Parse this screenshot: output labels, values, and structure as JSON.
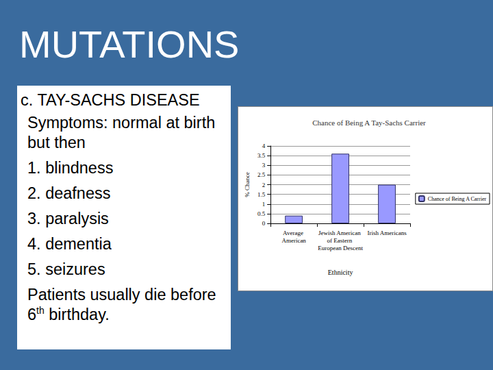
{
  "slide": {
    "title": "MUTATIONS",
    "heading": "c. TAY-SACHS DISEASE",
    "intro": "Symptoms: normal at birth but then",
    "symptoms": [
      "1. blindness",
      "2. deafness",
      "3. paralysis",
      "4. dementia",
      "5. seizures"
    ],
    "closing": {
      "before": "Patients usually die before 6",
      "superscript": "th",
      "after": " birthday."
    }
  },
  "chart_data": {
    "type": "bar",
    "title": "Chance of Being A Tay-Sachs Carrier",
    "x_label": "Ethnicity",
    "y_label": "% Chance",
    "categories": [
      "Average American",
      "Jewish American of Eastern European Descent",
      "Irish Americans"
    ],
    "series": [
      {
        "name": "Chance of Being A Carrier",
        "color": "#9999ff",
        "values": [
          0.4,
          3.6,
          2
        ]
      }
    ],
    "ylim": [
      0,
      4
    ],
    "yticks": [
      0,
      0.5,
      1,
      1.5,
      2,
      2.5,
      3,
      3.5,
      4
    ],
    "grid": true,
    "legend": "right"
  }
}
